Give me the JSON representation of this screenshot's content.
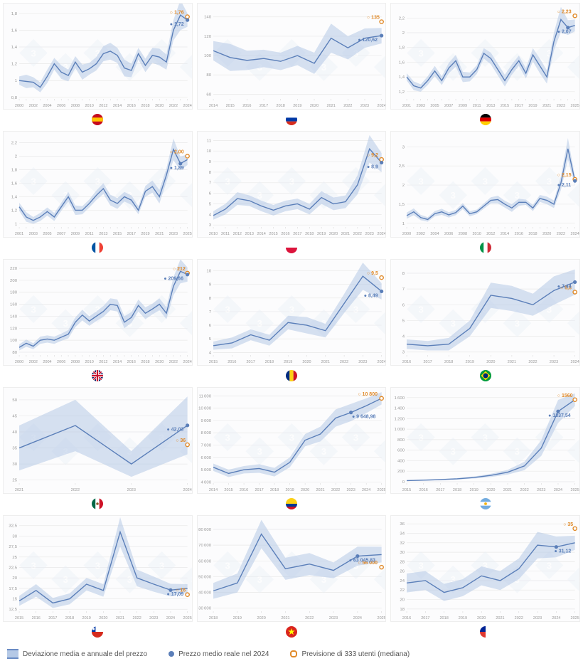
{
  "layout": {
    "cols": 3,
    "rows": 5
  },
  "colors": {
    "area": "#b5c9e6",
    "area_opacity": 0.55,
    "line": "#5b7fb9",
    "line_width": 1.4,
    "grid": "#e8e8e8",
    "axis_text": "#999",
    "watermark": "#e8eef7",
    "real_point": "#5b7fb9",
    "forecast_point_stroke": "#e08a2a"
  },
  "legend": {
    "area": "Deviazione media e annuale del prezzo",
    "real": "Prezzo medio reale nel 2024",
    "forecast": "Previsione di 333 utenti (mediana)"
  },
  "charts": [
    {
      "flag": "es",
      "x_start": 2000,
      "x_end": 2024,
      "yticks": [
        0.8,
        1.0,
        1.2,
        1.4,
        1.6,
        1.8
      ],
      "ylim": [
        0.78,
        1.85
      ],
      "mid": [
        1.0,
        0.99,
        0.98,
        0.92,
        1.05,
        1.2,
        1.1,
        1.06,
        1.22,
        1.1,
        1.14,
        1.2,
        1.32,
        1.35,
        1.3,
        1.15,
        1.12,
        1.32,
        1.18,
        1.3,
        1.28,
        1.22,
        1.6,
        1.78,
        1.72
      ],
      "dev": [
        0.05,
        0.08,
        0.06,
        0.06,
        0.08,
        0.07,
        0.08,
        0.07,
        0.07,
        0.09,
        0.07,
        0.08,
        0.09,
        0.1,
        0.09,
        0.1,
        0.08,
        0.07,
        0.08,
        0.09,
        0.1,
        0.09,
        0.12,
        0.18,
        0.08
      ],
      "real": {
        "i": 24,
        "v": 1.72,
        "label": "1,72"
      },
      "forecast": {
        "i": 24,
        "v": 1.76,
        "label": "1,76"
      }
    },
    {
      "flag": "ru",
      "x_start": 2014,
      "x_end": 2024,
      "yticks": [
        60,
        80,
        100,
        120,
        140
      ],
      "ylim": [
        55,
        148
      ],
      "mid": [
        105,
        98,
        95,
        97,
        94,
        100,
        92,
        118,
        108,
        118,
        120.62
      ],
      "dev": [
        10,
        14,
        10,
        9,
        9,
        10,
        11,
        15,
        12,
        10,
        8
      ],
      "real": {
        "i": 10,
        "v": 120.62,
        "label": "120,62"
      },
      "forecast": {
        "i": 10,
        "v": 135,
        "label": "135"
      }
    },
    {
      "flag": "de",
      "x_start": 2001,
      "x_end": 2025,
      "yticks": [
        1.2,
        1.4,
        1.6,
        1.8,
        2.0,
        2.2
      ],
      "ylim": [
        1.1,
        2.32
      ],
      "mid": [
        1.4,
        1.28,
        1.25,
        1.35,
        1.48,
        1.35,
        1.52,
        1.62,
        1.4,
        1.4,
        1.5,
        1.72,
        1.65,
        1.5,
        1.35,
        1.5,
        1.62,
        1.45,
        1.7,
        1.55,
        1.4,
        1.88,
        2.18,
        2.07,
        2.1
      ],
      "dev": [
        0.05,
        0.06,
        0.05,
        0.06,
        0.07,
        0.06,
        0.07,
        0.08,
        0.07,
        0.06,
        0.06,
        0.07,
        0.08,
        0.08,
        0.08,
        0.07,
        0.07,
        0.07,
        0.09,
        0.1,
        0.09,
        0.12,
        0.17,
        0.1,
        0.08
      ],
      "real": {
        "i": 23,
        "v": 2.07,
        "label": "2,07"
      },
      "forecast": {
        "i": 24,
        "v": 2.23,
        "label": "2,23"
      }
    },
    {
      "flag": "fr",
      "x_start": 2001,
      "x_end": 2025,
      "yticks": [
        1.0,
        1.2,
        1.4,
        1.6,
        1.8,
        2.0,
        2.2
      ],
      "ylim": [
        0.95,
        2.28
      ],
      "mid": [
        1.25,
        1.1,
        1.05,
        1.1,
        1.18,
        1.1,
        1.25,
        1.4,
        1.2,
        1.2,
        1.3,
        1.42,
        1.52,
        1.35,
        1.3,
        1.4,
        1.35,
        1.2,
        1.48,
        1.55,
        1.4,
        1.72,
        2.1,
        1.89,
        1.95
      ],
      "dev": [
        0.06,
        0.07,
        0.05,
        0.06,
        0.06,
        0.06,
        0.06,
        0.07,
        0.07,
        0.06,
        0.06,
        0.07,
        0.08,
        0.08,
        0.08,
        0.07,
        0.07,
        0.06,
        0.08,
        0.09,
        0.1,
        0.1,
        0.16,
        0.1,
        0.08
      ],
      "real": {
        "i": 23,
        "v": 1.89,
        "label": "1,89"
      },
      "forecast": {
        "i": 24,
        "v": 2.0,
        "label": "2,00"
      }
    },
    {
      "flag": "pl",
      "x_start": 2010,
      "x_end": 2024,
      "yticks": [
        3,
        4,
        5,
        6,
        7,
        8,
        9,
        10,
        11
      ],
      "ylim": [
        2.8,
        11.3
      ],
      "mid": [
        3.9,
        4.5,
        5.5,
        5.3,
        4.8,
        4.4,
        4.8,
        5.0,
        4.5,
        5.6,
        5.0,
        5.2,
        6.8,
        10.2,
        8.9
      ],
      "dev": [
        0.4,
        0.5,
        0.6,
        0.5,
        0.5,
        0.5,
        0.5,
        0.5,
        0.5,
        0.6,
        0.6,
        0.6,
        0.9,
        1.3,
        0.9
      ],
      "real": {
        "i": 14,
        "v": 8.9,
        "label": "8,9"
      },
      "forecast": {
        "i": 14,
        "v": 9.2,
        "label": "9,2"
      }
    },
    {
      "flag": "it",
      "x_start": 2000,
      "x_end": 2024,
      "yticks": [
        1.0,
        1.5,
        2.0,
        2.5,
        3.0
      ],
      "ylim": [
        0.9,
        3.25
      ],
      "mid": [
        1.2,
        1.3,
        1.15,
        1.1,
        1.25,
        1.3,
        1.22,
        1.28,
        1.45,
        1.25,
        1.3,
        1.45,
        1.6,
        1.62,
        1.5,
        1.4,
        1.55,
        1.55,
        1.4,
        1.65,
        1.6,
        1.5,
        2.05,
        2.95,
        2.11
      ],
      "dev": [
        0.08,
        0.09,
        0.07,
        0.06,
        0.07,
        0.08,
        0.07,
        0.07,
        0.08,
        0.07,
        0.06,
        0.07,
        0.08,
        0.1,
        0.09,
        0.1,
        0.09,
        0.07,
        0.08,
        0.09,
        0.1,
        0.1,
        0.18,
        0.28,
        0.12
      ],
      "real": {
        "i": 24,
        "v": 2.11,
        "label": "2,11"
      },
      "forecast": {
        "i": 24,
        "v": 2.15,
        "label": "2,15"
      }
    },
    {
      "flag": "gb",
      "x_start": 2000,
      "x_end": 2024,
      "yticks": [
        80,
        100,
        120,
        140,
        160,
        180,
        200,
        220
      ],
      "ylim": [
        75,
        225
      ],
      "mid": [
        88,
        95,
        90,
        100,
        102,
        100,
        105,
        110,
        130,
        142,
        132,
        140,
        148,
        160,
        158,
        130,
        138,
        158,
        145,
        152,
        160,
        145,
        190,
        215,
        209.66
      ],
      "dev": [
        5,
        6,
        5,
        6,
        6,
        6,
        6,
        7,
        8,
        9,
        8,
        8,
        9,
        10,
        10,
        10,
        9,
        10,
        10,
        9,
        10,
        10,
        15,
        20,
        12
      ],
      "real": {
        "i": 24,
        "v": 209.66,
        "label": "209,66"
      },
      "forecast": {
        "i": 24,
        "v": 212,
        "label": "212"
      }
    },
    {
      "flag": "ro",
      "x_start": 2015,
      "x_end": 2024,
      "yticks": [
        4,
        5,
        6,
        7,
        8,
        9,
        10
      ],
      "ylim": [
        3.8,
        10.4
      ],
      "mid": [
        4.5,
        4.7,
        5.3,
        4.9,
        6.2,
        6.0,
        5.6,
        7.6,
        9.6,
        8.49
      ],
      "dev": [
        0.3,
        0.4,
        0.4,
        0.4,
        0.5,
        0.6,
        0.5,
        0.7,
        1.0,
        0.6
      ],
      "real": {
        "i": 9,
        "v": 8.49,
        "label": "8,49"
      },
      "forecast": {
        "i": 9,
        "v": 9.5,
        "label": "9,5"
      }
    },
    {
      "flag": "br",
      "x_start": 2016,
      "x_end": 2024,
      "yticks": [
        3,
        4,
        5,
        6,
        7,
        8
      ],
      "ylim": [
        2.8,
        8.5
      ],
      "mid": [
        3.5,
        3.4,
        3.5,
        4.5,
        6.6,
        6.4,
        6.0,
        6.9,
        7.44
      ],
      "dev": [
        0.3,
        0.3,
        0.4,
        0.5,
        0.8,
        0.8,
        0.7,
        0.9,
        0.8
      ],
      "real": {
        "i": 8,
        "v": 7.44,
        "label": "7,44"
      },
      "forecast": {
        "i": 8,
        "v": 6.8,
        "label": "6,8"
      }
    },
    {
      "flag": "mx",
      "x_start": 2021,
      "x_end": 2024,
      "yticks": [
        25,
        30,
        35,
        40,
        45,
        50
      ],
      "ylim": [
        24,
        52
      ],
      "mid": [
        35,
        42,
        30,
        42.03
      ],
      "dev": [
        7,
        8,
        4,
        9
      ],
      "real": {
        "i": 3,
        "v": 42.03,
        "label": "42,03"
      },
      "forecast": {
        "i": 3,
        "v": 36,
        "label": "36"
      }
    },
    {
      "flag": "co",
      "x_start": 2014,
      "x_end": 2025,
      "yticks": [
        4000,
        5000,
        6000,
        7000,
        8000,
        9000,
        10000,
        11000
      ],
      "ylim": [
        3900,
        11200
      ],
      "mid": [
        5200,
        4700,
        5000,
        5100,
        4800,
        5600,
        7400,
        7900,
        9200,
        9648.98,
        10200,
        10800
      ],
      "dev": [
        300,
        300,
        300,
        350,
        350,
        400,
        500,
        600,
        700,
        700,
        600,
        500
      ],
      "real": {
        "i": 9,
        "v": 9648.98,
        "label": "9 648,98"
      },
      "forecast": {
        "i": 11,
        "v": 10800,
        "label": "10 800"
      }
    },
    {
      "flag": "ar",
      "x_start": 2015,
      "x_end": 2025,
      "yticks": [
        0,
        200,
        400,
        600,
        800,
        1000,
        1200,
        1400,
        1600
      ],
      "ylim": [
        -30,
        1680
      ],
      "mid": [
        20,
        30,
        40,
        55,
        80,
        120,
        180,
        300,
        640,
        1337.54,
        1560
      ],
      "dev": [
        8,
        10,
        12,
        15,
        20,
        30,
        45,
        80,
        150,
        220,
        120
      ],
      "real": {
        "i": 9,
        "v": 1337.54,
        "label": "1337,54"
      },
      "forecast": {
        "i": 10,
        "v": 1560,
        "label": "1560"
      }
    },
    {
      "flag": "cl",
      "x_start": 2015,
      "x_end": 2025,
      "yticks": [
        12.5,
        15.0,
        17.5,
        20.0,
        22.5,
        25.0,
        27.5,
        30.0,
        32.5
      ],
      "ylim": [
        12.0,
        33.5
      ],
      "mid": [
        14.5,
        17.0,
        14.0,
        15.0,
        18.5,
        17.0,
        31.0,
        20.0,
        18.5,
        17.09,
        17.5
      ],
      "dev": [
        1.2,
        1.5,
        1.2,
        1.3,
        1.5,
        1.5,
        3.5,
        2.0,
        1.8,
        1.5,
        1.0
      ],
      "real": {
        "i": 9,
        "v": 17.09,
        "label": "17,09"
      },
      "forecast": {
        "i": 10,
        "v": 16,
        "label": "16"
      }
    },
    {
      "flag": "vn",
      "x_start": 2018,
      "x_end": 2025,
      "yticks": [
        30000,
        40000,
        50000,
        60000,
        70000,
        80000
      ],
      "ylim": [
        28000,
        85000
      ],
      "mid": [
        41000,
        46000,
        77000,
        55000,
        58000,
        54000,
        63045.83,
        64000
      ],
      "dev": [
        5000,
        6000,
        9000,
        7000,
        7000,
        5000,
        6000,
        5000
      ],
      "real": {
        "i": 6,
        "v": 63045.83,
        "label": "63 045,83"
      },
      "forecast": {
        "i": 7,
        "v": 56000,
        "label": "56 000"
      }
    },
    {
      "flag": "za",
      "x_start": 2016,
      "x_end": 2025,
      "yticks": [
        18,
        20,
        22,
        24,
        26,
        28,
        30,
        32,
        34,
        36
      ],
      "ylim": [
        17.5,
        36.5
      ],
      "mid": [
        23.5,
        24.0,
        21.5,
        22.5,
        25.0,
        24.0,
        26.5,
        31.5,
        31.12,
        32.0
      ],
      "dev": [
        2.0,
        2.0,
        1.8,
        1.8,
        2.0,
        2.0,
        2.2,
        2.8,
        2.2,
        1.5
      ],
      "real": {
        "i": 8,
        "v": 31.12,
        "label": "31,12"
      },
      "forecast": {
        "i": 9,
        "v": 35,
        "label": "35"
      }
    }
  ],
  "flags": {
    "es": [
      [
        "#c60b1e",
        "0 0h10v10H0z"
      ],
      [
        "#ffc400",
        "0 3.3h10v3.4H0z"
      ]
    ],
    "ru": [
      [
        "#fff",
        "0 0h10v3.33H0z"
      ],
      [
        "#0039a6",
        "0 3.33h10v3.34H0z"
      ],
      [
        "#d52b1e",
        "0 6.67h10v3.33H0z"
      ]
    ],
    "de": [
      [
        "#000",
        "0 0h10v3.33H0z"
      ],
      [
        "#dd0000",
        "0 3.33h10v3.34H0z"
      ],
      [
        "#ffce00",
        "0 6.67h10v3.33H0z"
      ]
    ],
    "fr": [
      [
        "#0055a4",
        "0 0h3.33v10H0z"
      ],
      [
        "#fff",
        "3.33 0h3.34v10H3.33z"
      ],
      [
        "#ef4135",
        "6.67 0h3.33v10H6.67z"
      ]
    ],
    "pl": [
      [
        "#fff",
        "0 0h10v5H0z"
      ],
      [
        "#dc143c",
        "0 5h10v5H0z"
      ]
    ],
    "it": [
      [
        "#009246",
        "0 0h3.33v10H0z"
      ],
      [
        "#fff",
        "3.33 0h3.34v10H3.33z"
      ],
      [
        "#ce2b37",
        "6.67 0h3.33v10H6.67z"
      ]
    ],
    "gb": [
      [
        "#012169",
        "0 0h10v10H0z"
      ],
      [
        "#fff",
        "0 0 L10 10 M10 0 L0 10",
        "stroke",
        "2"
      ],
      [
        "#c8102e",
        "0 0 L10 10 M10 0 L0 10",
        "stroke",
        "1"
      ],
      [
        "#fff",
        "5 0v10 M0 5h10",
        "stroke",
        "2.5"
      ],
      [
        "#c8102e",
        "5 0v10 M0 5h10",
        "stroke",
        "1.4"
      ]
    ],
    "ro": [
      [
        "#002b7f",
        "0 0h3.33v10H0z"
      ],
      [
        "#fcd116",
        "3.33 0h3.34v10H3.33z"
      ],
      [
        "#ce1126",
        "6.67 0h3.33v10H6.67z"
      ]
    ],
    "br": [
      [
        "#009b3a",
        "0 0h10v10H0z"
      ],
      [
        "#fedf00",
        "5 1 9 5 5 9 1 5",
        "poly"
      ],
      [
        "#002776",
        "5",
        "5",
        "2.2",
        "circle"
      ]
    ],
    "mx": [
      [
        "#006847",
        "0 0h3.33v10H0z"
      ],
      [
        "#fff",
        "3.33 0h3.34v10H3.33z"
      ],
      [
        "#ce1126",
        "6.67 0h3.33v10H6.67z"
      ],
      [
        "#8a5a2b",
        "5",
        "5",
        "1.1",
        "circle"
      ]
    ],
    "co": [
      [
        "#fcd116",
        "0 0h10v5H0z"
      ],
      [
        "#003893",
        "0 5h10v2.5H0z"
      ],
      [
        "#ce1126",
        "0 7.5h10v2.5H0z"
      ]
    ],
    "ar": [
      [
        "#74acdf",
        "0 0h10v3.33H0z"
      ],
      [
        "#fff",
        "0 3.33h10v3.34H0z"
      ],
      [
        "#74acdf",
        "0 6.67h10v3.33H0z"
      ],
      [
        "#f6b40e",
        "5",
        "5",
        "1.2",
        "circle"
      ]
    ],
    "cl": [
      [
        "#fff",
        "0 0h10v5H0z"
      ],
      [
        "#d52b1e",
        "0 5h10v5H0z"
      ],
      [
        "#0039a6",
        "0 0h3.4v5H0z"
      ],
      [
        "#fff",
        "1.7",
        "2.5",
        "0.9",
        "circle"
      ]
    ],
    "vn": [
      [
        "#da251d",
        "0 0h10v10H0z"
      ],
      [
        "#ff0",
        "5 1.8 5.7 4 8 4 6.15 5.35 6.85 7.55 5 6.2 3.15 7.55 3.85 5.35 2 4 4.3 4",
        "poly"
      ]
    ],
    "za": [
      [
        "#002395",
        "0 0h5v5H0z"
      ],
      [
        "#de3831",
        "0 5h5v5H0z"
      ],
      [
        "#fff",
        "5 0h5v10H5z"
      ],
      [
        "#007a4d",
        "0 0 L6 5 L0 10",
        "poly"
      ],
      [
        "#ffb612",
        "0 1.5 L4 5 L0 8.5",
        "poly"
      ],
      [
        "#000",
        "0 2.7 L2.7 5 L0 7.3",
        "poly"
      ]
    ]
  }
}
